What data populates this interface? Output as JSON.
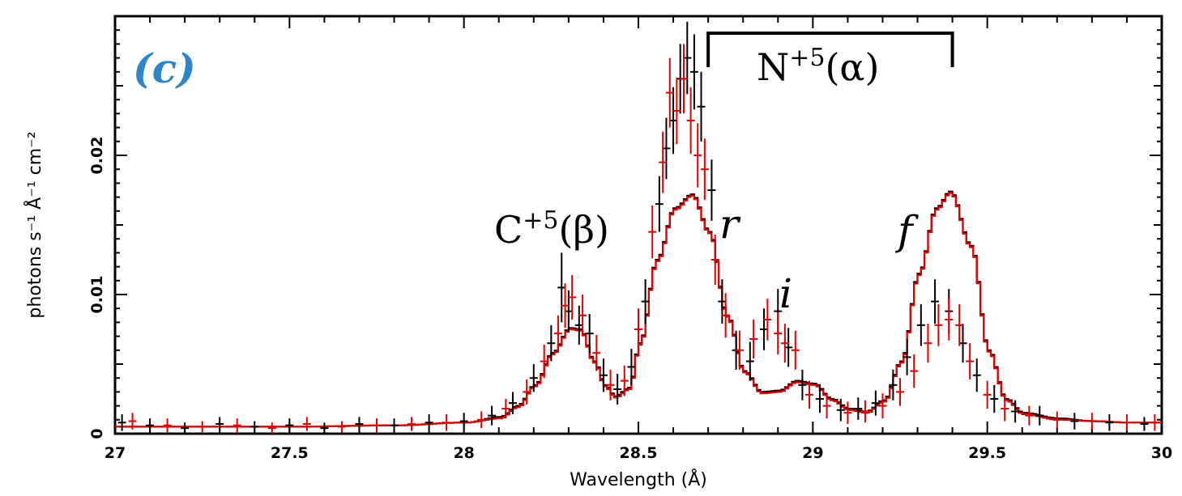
{
  "chart_data": {
    "type": "line",
    "panel_label": "(c)",
    "xlabel": "Wavelength (Å)",
    "ylabel": "photons s⁻¹ Å⁻¹ cm⁻²",
    "xlim": [
      27,
      30
    ],
    "ylim": [
      0,
      0.03
    ],
    "xticks": [
      "27",
      "27.5",
      "28",
      "28.5",
      "29",
      "29.5",
      "30"
    ],
    "yticks": [
      "0",
      "0.01",
      "0.02"
    ],
    "annotations": [
      {
        "id": "ion-c5",
        "text_base": "C",
        "text_sup": "+5",
        "text_rest": "(β)",
        "x": 28.3
      },
      {
        "id": "ion-n5",
        "text_base": "N",
        "text_sup": "+5",
        "text_rest": "(α)",
        "x": 29.05
      },
      {
        "id": "line-r",
        "text": "r",
        "x": 28.78
      },
      {
        "id": "line-i",
        "text": "i",
        "x": 28.93
      },
      {
        "id": "line-f",
        "text": "f",
        "x": 29.3
      }
    ],
    "bracket": {
      "x_start": 28.7,
      "x_end": 29.4,
      "label_id": "ion-n5"
    },
    "series": [
      {
        "name": "model-black",
        "color": "#000000",
        "x": [
          27.0,
          27.5,
          27.8,
          28.0,
          28.1,
          28.15,
          28.2,
          28.25,
          28.3,
          28.33,
          28.37,
          28.4,
          28.43,
          28.47,
          28.5,
          28.55,
          28.6,
          28.65,
          28.7,
          28.75,
          28.8,
          28.85,
          28.9,
          28.95,
          29.0,
          29.05,
          29.1,
          29.15,
          29.2,
          29.25,
          29.3,
          29.35,
          29.39,
          29.45,
          29.5,
          29.55,
          29.6,
          29.7,
          29.8,
          29.9,
          30.0
        ],
        "y": [
          0.0005,
          0.0005,
          0.0006,
          0.0008,
          0.0012,
          0.002,
          0.0035,
          0.0058,
          0.0076,
          0.0075,
          0.0052,
          0.0035,
          0.0027,
          0.0033,
          0.0065,
          0.0125,
          0.0162,
          0.0172,
          0.0145,
          0.0085,
          0.0045,
          0.003,
          0.0031,
          0.0038,
          0.0036,
          0.0025,
          0.0018,
          0.0016,
          0.0024,
          0.0052,
          0.0115,
          0.0162,
          0.0174,
          0.0135,
          0.006,
          0.0025,
          0.0015,
          0.0011,
          0.0009,
          0.0008,
          0.0008
        ]
      },
      {
        "name": "model-red",
        "color": "#e00000",
        "x": [
          27.0,
          27.5,
          27.8,
          28.0,
          28.1,
          28.15,
          28.2,
          28.25,
          28.3,
          28.33,
          28.37,
          28.4,
          28.43,
          28.47,
          28.5,
          28.55,
          28.6,
          28.65,
          28.7,
          28.75,
          28.8,
          28.85,
          28.9,
          28.95,
          29.0,
          29.05,
          29.1,
          29.15,
          29.2,
          29.25,
          29.3,
          29.35,
          29.39,
          29.45,
          29.5,
          29.55,
          29.6,
          29.7,
          29.8,
          29.9,
          30.0
        ],
        "y": [
          0.0005,
          0.0005,
          0.0006,
          0.0008,
          0.0011,
          0.0019,
          0.0034,
          0.0057,
          0.0075,
          0.0074,
          0.0051,
          0.0034,
          0.0026,
          0.0032,
          0.0064,
          0.0124,
          0.0161,
          0.0171,
          0.0144,
          0.0084,
          0.0044,
          0.0029,
          0.003,
          0.0037,
          0.0035,
          0.0024,
          0.0017,
          0.0015,
          0.0023,
          0.0051,
          0.0114,
          0.0161,
          0.0173,
          0.0134,
          0.0059,
          0.0024,
          0.0014,
          0.001,
          0.0009,
          0.0008,
          0.0008
        ]
      },
      {
        "name": "data-black",
        "color": "#000000",
        "points": [
          [
            27.02,
            0.0008,
            0.0006
          ],
          [
            27.1,
            0.0006,
            0.0005
          ],
          [
            27.2,
            0.0004,
            0.0004
          ],
          [
            27.3,
            0.0007,
            0.0005
          ],
          [
            27.4,
            0.0005,
            0.0004
          ],
          [
            27.5,
            0.0006,
            0.0005
          ],
          [
            27.6,
            0.0004,
            0.0004
          ],
          [
            27.7,
            0.0007,
            0.0005
          ],
          [
            27.8,
            0.0006,
            0.0005
          ],
          [
            27.9,
            0.0008,
            0.0006
          ],
          [
            28.0,
            0.0009,
            0.0006
          ],
          [
            28.08,
            0.0013,
            0.0007
          ],
          [
            28.14,
            0.0022,
            0.0008
          ],
          [
            28.2,
            0.004,
            0.001
          ],
          [
            28.25,
            0.0065,
            0.0013
          ],
          [
            28.28,
            0.0105,
            0.0025
          ],
          [
            28.3,
            0.0088,
            0.0015
          ],
          [
            28.33,
            0.0078,
            0.0014
          ],
          [
            28.36,
            0.0072,
            0.0014
          ],
          [
            28.4,
            0.0042,
            0.0012
          ],
          [
            28.44,
            0.0032,
            0.0011
          ],
          [
            28.48,
            0.0048,
            0.0013
          ],
          [
            28.52,
            0.0095,
            0.0016
          ],
          [
            28.56,
            0.0165,
            0.002
          ],
          [
            28.58,
            0.0205,
            0.0022
          ],
          [
            28.6,
            0.0225,
            0.0024
          ],
          [
            28.62,
            0.0255,
            0.0025
          ],
          [
            28.64,
            0.027,
            0.0026
          ],
          [
            28.66,
            0.026,
            0.0027
          ],
          [
            28.68,
            0.0235,
            0.0025
          ],
          [
            28.71,
            0.0175,
            0.0022
          ],
          [
            28.74,
            0.0095,
            0.0016
          ],
          [
            28.78,
            0.006,
            0.0014
          ],
          [
            28.82,
            0.0052,
            0.0014
          ],
          [
            28.86,
            0.0075,
            0.0015
          ],
          [
            28.9,
            0.0088,
            0.0016
          ],
          [
            28.93,
            0.0062,
            0.0014
          ],
          [
            28.97,
            0.0035,
            0.0011
          ],
          [
            29.02,
            0.0025,
            0.001
          ],
          [
            29.08,
            0.0017,
            0.0008
          ],
          [
            29.13,
            0.0018,
            0.0008
          ],
          [
            29.18,
            0.0022,
            0.0009
          ],
          [
            29.23,
            0.0035,
            0.0011
          ],
          [
            29.27,
            0.0055,
            0.0013
          ],
          [
            29.31,
            0.0078,
            0.0015
          ],
          [
            29.35,
            0.0095,
            0.0016
          ],
          [
            29.39,
            0.0088,
            0.0016
          ],
          [
            29.43,
            0.0065,
            0.0014
          ],
          [
            29.47,
            0.0042,
            0.0012
          ],
          [
            29.52,
            0.0025,
            0.001
          ],
          [
            29.58,
            0.0016,
            0.0008
          ],
          [
            29.65,
            0.0013,
            0.0007
          ],
          [
            29.75,
            0.0009,
            0.0006
          ],
          [
            29.85,
            0.0008,
            0.0006
          ],
          [
            29.95,
            0.0007,
            0.0005
          ]
        ]
      },
      {
        "name": "data-red",
        "color": "#e00000",
        "points": [
          [
            27.05,
            0.0009,
            0.0006
          ],
          [
            27.15,
            0.0006,
            0.0005
          ],
          [
            27.25,
            0.0005,
            0.0004
          ],
          [
            27.35,
            0.0006,
            0.0005
          ],
          [
            27.45,
            0.0004,
            0.0004
          ],
          [
            27.55,
            0.0007,
            0.0005
          ],
          [
            27.65,
            0.0005,
            0.0004
          ],
          [
            27.75,
            0.0006,
            0.0005
          ],
          [
            27.85,
            0.0007,
            0.0005
          ],
          [
            27.95,
            0.0008,
            0.0006
          ],
          [
            28.05,
            0.001,
            0.0006
          ],
          [
            28.12,
            0.0018,
            0.0007
          ],
          [
            28.18,
            0.003,
            0.0009
          ],
          [
            28.23,
            0.0052,
            0.0012
          ],
          [
            28.27,
            0.0072,
            0.0013
          ],
          [
            28.29,
            0.0092,
            0.0016
          ],
          [
            28.31,
            0.0098,
            0.0016
          ],
          [
            28.34,
            0.0085,
            0.0015
          ],
          [
            28.38,
            0.0058,
            0.0013
          ],
          [
            28.42,
            0.0035,
            0.0011
          ],
          [
            28.46,
            0.0038,
            0.0011
          ],
          [
            28.5,
            0.0075,
            0.0015
          ],
          [
            28.54,
            0.0145,
            0.0019
          ],
          [
            28.57,
            0.0195,
            0.0022
          ],
          [
            28.59,
            0.0245,
            0.0025
          ],
          [
            28.61,
            0.0232,
            0.0024
          ],
          [
            28.63,
            0.0255,
            0.0025
          ],
          [
            28.65,
            0.0225,
            0.0024
          ],
          [
            28.67,
            0.02,
            0.0023
          ],
          [
            28.69,
            0.019,
            0.0022
          ],
          [
            28.72,
            0.0125,
            0.0018
          ],
          [
            28.75,
            0.0085,
            0.0016
          ],
          [
            28.79,
            0.006,
            0.0014
          ],
          [
            28.83,
            0.0068,
            0.0014
          ],
          [
            28.87,
            0.0082,
            0.0015
          ],
          [
            28.9,
            0.0072,
            0.0015
          ],
          [
            28.92,
            0.0065,
            0.0014
          ],
          [
            28.95,
            0.006,
            0.0014
          ],
          [
            28.99,
            0.0028,
            0.001
          ],
          [
            29.04,
            0.002,
            0.0009
          ],
          [
            29.1,
            0.0015,
            0.0008
          ],
          [
            29.15,
            0.0016,
            0.0008
          ],
          [
            29.2,
            0.002,
            0.0009
          ],
          [
            29.25,
            0.003,
            0.001
          ],
          [
            29.29,
            0.0045,
            0.0012
          ],
          [
            29.33,
            0.0065,
            0.0014
          ],
          [
            29.36,
            0.0078,
            0.0015
          ],
          [
            29.39,
            0.0082,
            0.0015
          ],
          [
            29.42,
            0.0078,
            0.0015
          ],
          [
            29.45,
            0.0052,
            0.0013
          ],
          [
            29.5,
            0.0028,
            0.001
          ],
          [
            29.55,
            0.0018,
            0.0009
          ],
          [
            29.62,
            0.0013,
            0.0007
          ],
          [
            29.7,
            0.001,
            0.0006
          ],
          [
            29.8,
            0.0009,
            0.0006
          ],
          [
            29.9,
            0.0008,
            0.0006
          ],
          [
            29.98,
            0.0008,
            0.0006
          ]
        ]
      }
    ]
  }
}
